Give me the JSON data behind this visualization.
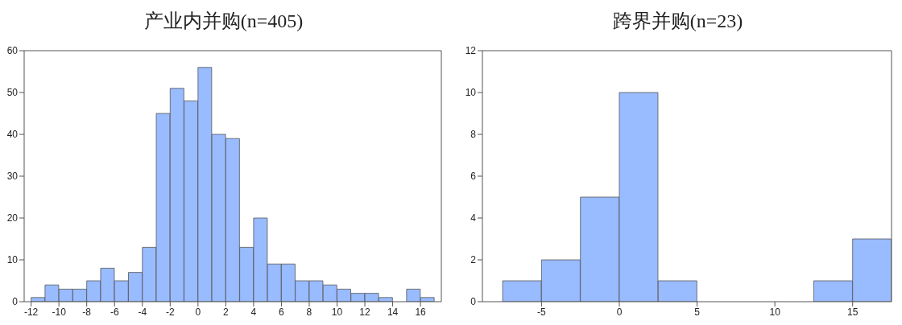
{
  "chart_data": [
    {
      "type": "histogram",
      "title": "产业内并购(n=405)",
      "bins": [
        -12,
        -11,
        -10,
        -9,
        -8,
        -7,
        -6,
        -5,
        -4,
        -3,
        -2,
        -1,
        0,
        1,
        2,
        3,
        4,
        5,
        6,
        7,
        8,
        9,
        10,
        11,
        12,
        13,
        14,
        15,
        16,
        17
      ],
      "values": [
        1,
        4,
        3,
        3,
        5,
        8,
        5,
        7,
        13,
        45,
        51,
        48,
        56,
        40,
        39,
        13,
        20,
        9,
        9,
        5,
        5,
        4,
        3,
        2,
        2,
        1,
        0,
        3,
        1
      ],
      "color": "#99bbff",
      "xlim": [
        -12.5,
        17.5
      ],
      "xticks": [
        -12,
        -10,
        -8,
        -6,
        -4,
        -2,
        0,
        2,
        4,
        6,
        8,
        10,
        12,
        14,
        16
      ],
      "ylim": [
        0,
        60
      ],
      "yticks": [
        0,
        10,
        20,
        30,
        40,
        50,
        60
      ]
    },
    {
      "type": "histogram",
      "title": "跨界并购(n=23)",
      "bins": [
        -7.5,
        -5,
        -2.5,
        0,
        2.5,
        5,
        7.5,
        10,
        12.5,
        15,
        17.5
      ],
      "values": [
        1,
        2,
        5,
        10,
        1,
        0,
        0,
        0,
        1,
        3
      ],
      "color": "#99bbff",
      "xlim": [
        -8.8,
        17.5
      ],
      "xticks": [
        -5,
        0,
        5,
        10,
        15
      ],
      "ylim": [
        0,
        12
      ],
      "yticks": [
        0,
        2,
        4,
        6,
        8,
        10,
        12
      ]
    }
  ]
}
